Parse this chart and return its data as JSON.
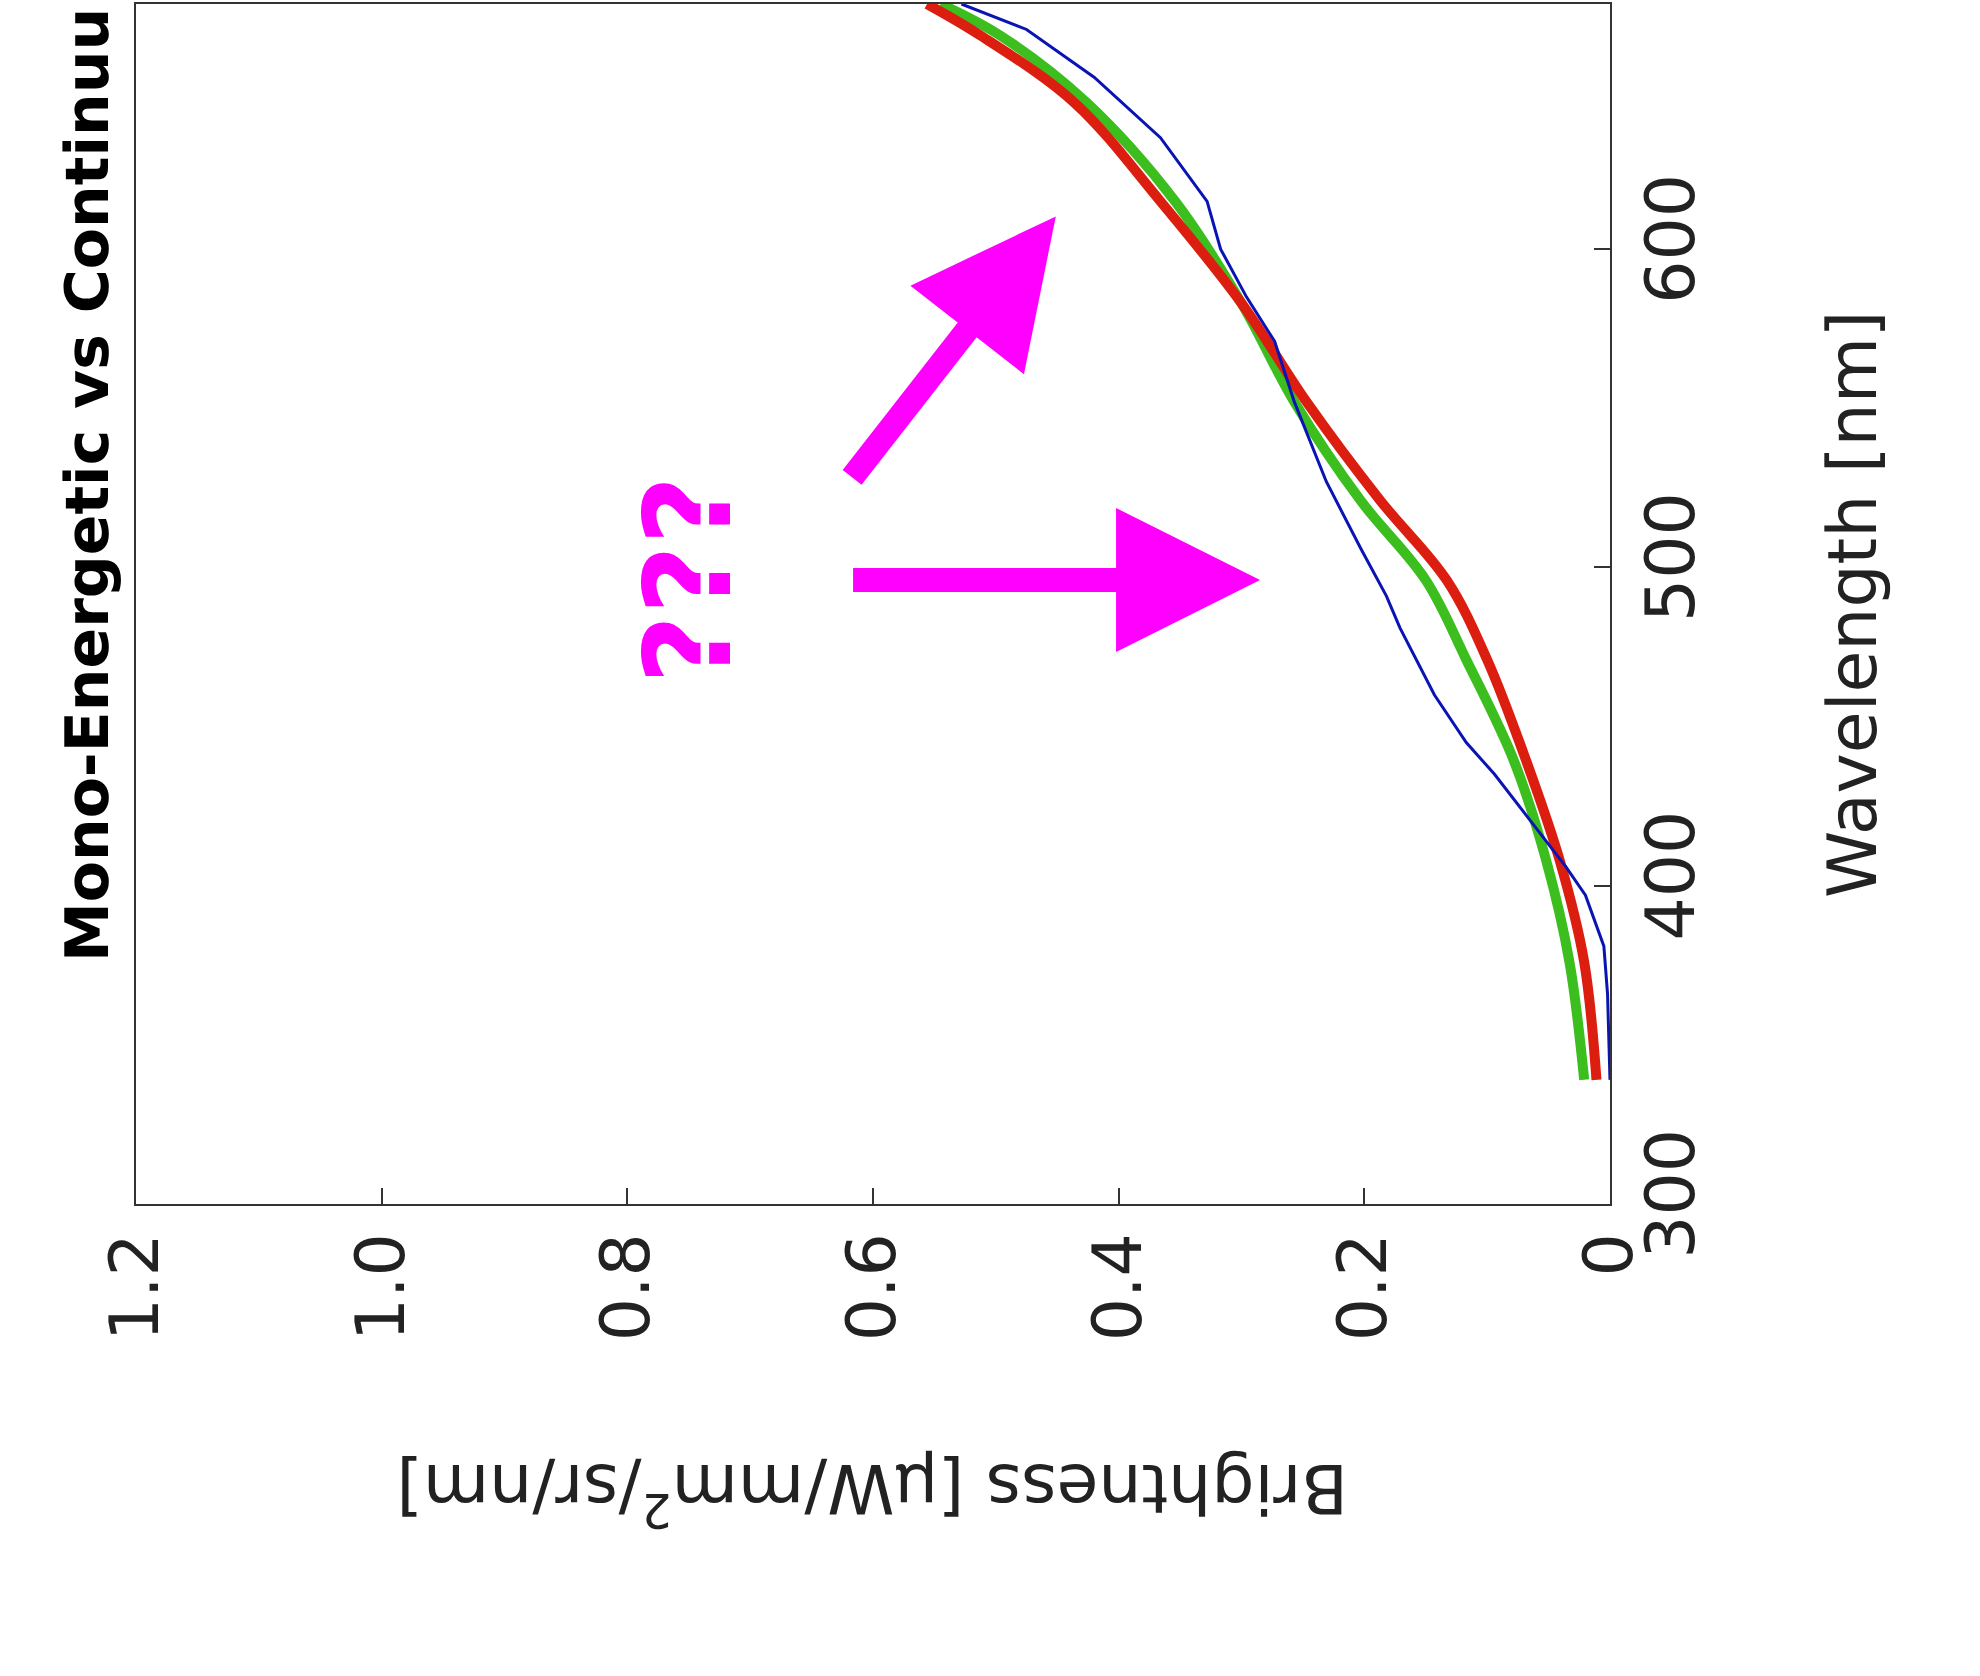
{
  "chart_data": {
    "type": "line",
    "orientation": "horizontal",
    "title": "Mono-Energetic vs Continuu",
    "xlabel": "Brightness [μW/mm$^{2}$/sr/nm]",
    "ylabel": "Wavelength [nm]",
    "xlim": [
      1.2,
      0
    ],
    "xticks": [
      {
        "value": 1.2,
        "label": "1.2"
      },
      {
        "value": 1.0,
        "label": "1.0"
      },
      {
        "value": 0.8,
        "label": "0.8"
      },
      {
        "value": 0.6,
        "label": "0.6"
      },
      {
        "value": 0.4,
        "label": "0.4"
      },
      {
        "value": 0.2,
        "label": "0.2"
      },
      0
    ],
    "ylim": [
      300,
      677
    ],
    "yticks": [
      300,
      400,
      500,
      600
    ],
    "series": [
      {
        "color": "#0a14b4",
        "x": [
          339,
          366,
          381,
          397,
          406,
          422,
          435,
          445,
          460,
          481,
          491,
          506,
          527,
          552,
          571,
          585,
          600,
          615,
          635,
          654,
          669,
          677
        ],
        "values": [
          0,
          0.002,
          0.005,
          0.02,
          0.036,
          0.068,
          0.094,
          0.117,
          0.143,
          0.171,
          0.182,
          0.203,
          0.231,
          0.257,
          0.273,
          0.296,
          0.317,
          0.328,
          0.366,
          0.42,
          0.475,
          0.528
        ]
      },
      {
        "color": "#dc1e10",
        "x": [
          339,
          376,
          408,
          439,
          471,
          496,
          521,
          552,
          583,
          615,
          646,
          667,
          677
        ],
        "values": [
          0.011,
          0.021,
          0.041,
          0.068,
          0.1,
          0.133,
          0.187,
          0.247,
          0.3,
          0.366,
          0.436,
          0.512,
          0.556
        ]
      },
      {
        "color": "#3cbe1e",
        "x": [
          339,
          376,
          408,
          439,
          471,
          496,
          521,
          552,
          583,
          615,
          646,
          667,
          677
        ],
        "values": [
          0.021,
          0.033,
          0.052,
          0.078,
          0.117,
          0.15,
          0.203,
          0.257,
          0.3,
          0.354,
          0.426,
          0.496,
          0.545
        ]
      }
    ],
    "annotations": [
      "???"
    ],
    "legend": false
  }
}
